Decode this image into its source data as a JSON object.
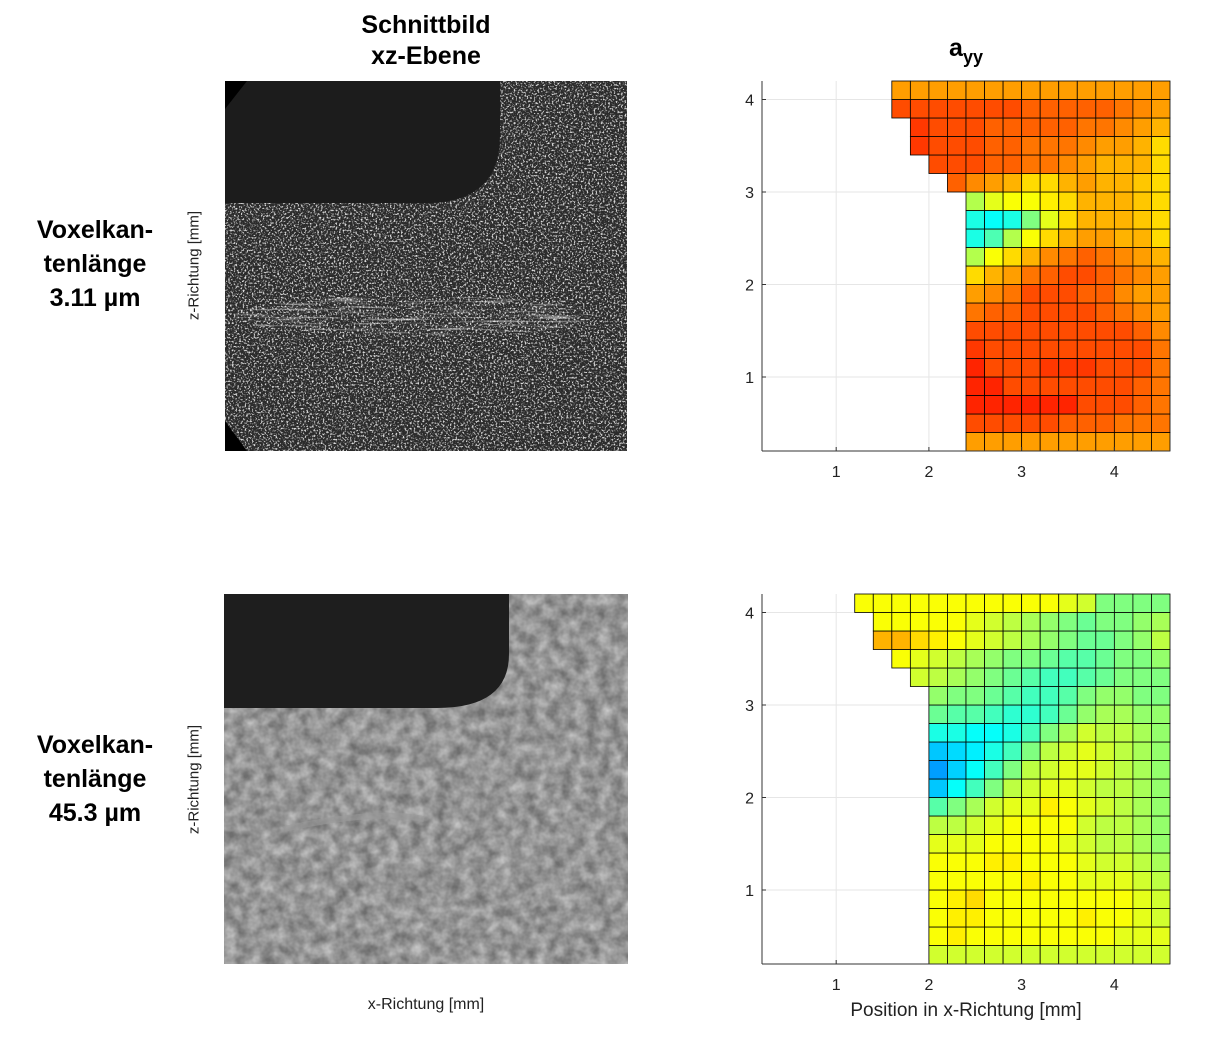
{
  "left_column": {
    "title_line1": "Schnittbild",
    "title_line2": "xz-Ebene",
    "y_label": "z-Richtung [mm]",
    "x_label": "x-Richtung [mm]"
  },
  "rows": [
    {
      "label_line1": "Voxelkan-",
      "label_line2": "tenlänge",
      "label_line3": "3.11 µm",
      "image": "ct-slice-high-resolution"
    },
    {
      "label_line1": "Voxelkan-",
      "label_line2": "tenlänge",
      "label_line3": "45.3 µm",
      "image": "ct-slice-low-resolution"
    }
  ],
  "colors": {
    "cavity": "#1c1c1c",
    "slice_high_res_bg": "#2a2a2a",
    "slice_low_res_bg": "#7a7a7a",
    "gridline": "#e6e6e6",
    "cell_border": "#000000"
  },
  "chart_data": [
    {
      "type": "heatmap",
      "title": "a",
      "title_subscript": "yy",
      "xlabel": "",
      "ylabel": "",
      "xlim": [
        0.2,
        4.6
      ],
      "ylim": [
        0.2,
        4.2
      ],
      "xticks": [
        1,
        2,
        3,
        4
      ],
      "yticks": [
        1,
        2,
        3,
        4
      ],
      "grid": true,
      "cell_size": 0.2,
      "x_start": 0.2,
      "y_start": 0.2,
      "colormap": "jet",
      "color_range": [
        0,
        1
      ],
      "row_extent": [
        11,
        11,
        11,
        11,
        11,
        11,
        11,
        11,
        11,
        11,
        11,
        11,
        11,
        11,
        12,
        13,
        14,
        14,
        15,
        15
      ],
      "values": [
        [
          0.72,
          0.72,
          0.72,
          0.72,
          0.72,
          0.72,
          0.72,
          0.72,
          0.72,
          0.72,
          0.72,
          0.72,
          0.72,
          0.72,
          0.72,
          0.72,
          0.72,
          0.72,
          0.72,
          0.72,
          0.72,
          0.72
        ],
        [
          0.72,
          0.76,
          0.78,
          0.78,
          0.8,
          0.8,
          0.8,
          0.8,
          0.8,
          0.8,
          0.8,
          0.8,
          0.8,
          0.8,
          0.8,
          0.8,
          0.78,
          0.78,
          0.78,
          0.76,
          0.76,
          0.76
        ],
        [
          0.72,
          0.78,
          0.8,
          0.82,
          0.8,
          0.82,
          0.82,
          0.82,
          0.82,
          0.82,
          0.84,
          0.84,
          0.84,
          0.84,
          0.84,
          0.84,
          0.84,
          0.8,
          0.8,
          0.8,
          0.78,
          0.76
        ],
        [
          0.7,
          0.74,
          0.76,
          0.76,
          0.78,
          0.8,
          0.8,
          0.84,
          0.84,
          0.84,
          0.84,
          0.84,
          0.84,
          0.8,
          0.8,
          0.8,
          0.8,
          0.8,
          0.8,
          0.8,
          0.78,
          0.76
        ],
        [
          0.7,
          0.72,
          0.74,
          0.76,
          0.78,
          0.78,
          0.8,
          0.82,
          0.82,
          0.84,
          0.84,
          0.84,
          0.8,
          0.8,
          0.8,
          0.82,
          0.82,
          0.82,
          0.8,
          0.8,
          0.8,
          0.76
        ],
        [
          0.66,
          0.7,
          0.72,
          0.74,
          0.76,
          0.78,
          0.8,
          0.8,
          0.8,
          0.82,
          0.82,
          0.82,
          0.8,
          0.8,
          0.8,
          0.8,
          0.8,
          0.8,
          0.8,
          0.8,
          0.8,
          0.76
        ],
        [
          0.6,
          0.64,
          0.66,
          0.7,
          0.72,
          0.74,
          0.76,
          0.78,
          0.78,
          0.8,
          0.8,
          0.8,
          0.8,
          0.8,
          0.8,
          0.8,
          0.8,
          0.8,
          0.8,
          0.8,
          0.78,
          0.74
        ],
        [
          0.5,
          0.54,
          0.58,
          0.6,
          0.62,
          0.66,
          0.7,
          0.72,
          0.72,
          0.74,
          0.76,
          0.76,
          0.78,
          0.78,
          0.8,
          0.8,
          0.8,
          0.8,
          0.78,
          0.76,
          0.74,
          0.72
        ],
        [
          0.45,
          0.45,
          0.4,
          0.38,
          0.4,
          0.45,
          0.55,
          0.6,
          0.62,
          0.66,
          0.7,
          0.72,
          0.74,
          0.76,
          0.8,
          0.8,
          0.8,
          0.78,
          0.78,
          0.74,
          0.72,
          0.72
        ],
        [
          0.45,
          0.42,
          0.38,
          0.33,
          0.33,
          0.4,
          0.42,
          0.45,
          0.55,
          0.6,
          0.64,
          0.66,
          0.7,
          0.72,
          0.76,
          0.78,
          0.8,
          0.8,
          0.78,
          0.76,
          0.74,
          0.72
        ],
        [
          0.55,
          0.5,
          0.48,
          0.45,
          0.42,
          0.4,
          0.35,
          0.3,
          0.3,
          0.35,
          0.45,
          0.55,
          0.62,
          0.66,
          0.7,
          0.74,
          0.76,
          0.78,
          0.76,
          0.74,
          0.72,
          0.7
        ],
        [
          0.66,
          0.62,
          0.6,
          0.55,
          0.5,
          0.45,
          0.42,
          0.38,
          0.36,
          0.4,
          0.42,
          0.4,
          0.45,
          0.55,
          0.62,
          0.66,
          0.7,
          0.72,
          0.72,
          0.7,
          0.7,
          0.66
        ],
        [
          0.7,
          0.68,
          0.66,
          0.64,
          0.62,
          0.6,
          0.6,
          0.58,
          0.55,
          0.5,
          0.45,
          0.4,
          0.38,
          0.4,
          0.5,
          0.6,
          0.66,
          0.7,
          0.7,
          0.7,
          0.68,
          0.66
        ],
        [
          0.72,
          0.72,
          0.7,
          0.68,
          0.68,
          0.66,
          0.66,
          0.64,
          0.62,
          0.6,
          0.58,
          0.55,
          0.6,
          0.62,
          0.62,
          0.64,
          0.66,
          0.7,
          0.7,
          0.7,
          0.68,
          0.66
        ],
        [
          0.76,
          0.76,
          0.76,
          0.76,
          0.78,
          0.78,
          0.8,
          0.8,
          0.8,
          0.78,
          0.78,
          0.74,
          0.72,
          0.7,
          0.66,
          0.66,
          0.7,
          0.72,
          0.7,
          0.7,
          0.68,
          0.66
        ],
        [
          0.78,
          0.78,
          0.78,
          0.78,
          0.8,
          0.8,
          0.8,
          0.82,
          0.8,
          0.8,
          0.8,
          0.8,
          0.78,
          0.78,
          0.76,
          0.76,
          0.74,
          0.72,
          0.7,
          0.7,
          0.7,
          0.66
        ],
        [
          0.76,
          0.76,
          0.78,
          0.78,
          0.8,
          0.8,
          0.82,
          0.82,
          0.82,
          0.8,
          0.8,
          0.8,
          0.78,
          0.78,
          0.76,
          0.76,
          0.76,
          0.74,
          0.72,
          0.72,
          0.7,
          0.66
        ],
        [
          0.76,
          0.76,
          0.78,
          0.78,
          0.8,
          0.8,
          0.84,
          0.84,
          0.82,
          0.8,
          0.8,
          0.8,
          0.78,
          0.78,
          0.78,
          0.78,
          0.78,
          0.76,
          0.76,
          0.74,
          0.72,
          0.7
        ],
        [
          0.74,
          0.76,
          0.76,
          0.78,
          0.78,
          0.8,
          0.8,
          0.8,
          0.8,
          0.8,
          0.8,
          0.8,
          0.8,
          0.8,
          0.78,
          0.78,
          0.78,
          0.78,
          0.78,
          0.76,
          0.74,
          0.72
        ],
        [
          0.72,
          0.72,
          0.72,
          0.72,
          0.72,
          0.72,
          0.72,
          0.72,
          0.72,
          0.72,
          0.72,
          0.72,
          0.72,
          0.72,
          0.72,
          0.72,
          0.72,
          0.72,
          0.72,
          0.72,
          0.72,
          0.72
        ]
      ]
    },
    {
      "type": "heatmap",
      "title": "",
      "xlabel": "Position in x-Richtung [mm]",
      "ylabel": "",
      "xlim": [
        0.2,
        4.6
      ],
      "ylim": [
        0.2,
        4.2
      ],
      "xticks": [
        1,
        2,
        3,
        4
      ],
      "yticks": [
        1,
        2,
        3,
        4
      ],
      "grid": true,
      "cell_size": 0.2,
      "x_start": 0.2,
      "y_start": 0.2,
      "colormap": "jet",
      "color_range": [
        0,
        1
      ],
      "row_extent": [
        13,
        13,
        13,
        13,
        13,
        13,
        13,
        13,
        13,
        13,
        13,
        13,
        13,
        13,
        13,
        14,
        15,
        16,
        16,
        17
      ],
      "values": [
        [
          0.58,
          0.58,
          0.58,
          0.58,
          0.58,
          0.58,
          0.58,
          0.58,
          0.58,
          0.58,
          0.58,
          0.58,
          0.58,
          0.58,
          0.58,
          0.58,
          0.58,
          0.58,
          0.58,
          0.58,
          0.58,
          0.58
        ],
        [
          0.58,
          0.6,
          0.6,
          0.6,
          0.62,
          0.62,
          0.62,
          0.62,
          0.62,
          0.62,
          0.64,
          0.62,
          0.62,
          0.62,
          0.62,
          0.62,
          0.62,
          0.62,
          0.62,
          0.6,
          0.6,
          0.6
        ],
        [
          0.58,
          0.6,
          0.62,
          0.62,
          0.62,
          0.62,
          0.62,
          0.62,
          0.62,
          0.62,
          0.64,
          0.64,
          0.62,
          0.62,
          0.62,
          0.62,
          0.62,
          0.64,
          0.62,
          0.62,
          0.6,
          0.58
        ],
        [
          0.56,
          0.6,
          0.6,
          0.6,
          0.62,
          0.62,
          0.62,
          0.6,
          0.62,
          0.62,
          0.64,
          0.66,
          0.62,
          0.62,
          0.62,
          0.62,
          0.62,
          0.62,
          0.62,
          0.62,
          0.6,
          0.58
        ],
        [
          0.54,
          0.56,
          0.58,
          0.58,
          0.6,
          0.6,
          0.62,
          0.62,
          0.62,
          0.62,
          0.62,
          0.62,
          0.62,
          0.62,
          0.64,
          0.62,
          0.62,
          0.6,
          0.6,
          0.6,
          0.58,
          0.56
        ],
        [
          0.44,
          0.46,
          0.5,
          0.52,
          0.56,
          0.58,
          0.6,
          0.6,
          0.6,
          0.62,
          0.62,
          0.62,
          0.64,
          0.64,
          0.62,
          0.62,
          0.62,
          0.6,
          0.58,
          0.58,
          0.56,
          0.54
        ],
        [
          0.4,
          0.42,
          0.44,
          0.48,
          0.52,
          0.54,
          0.56,
          0.58,
          0.58,
          0.6,
          0.6,
          0.6,
          0.62,
          0.62,
          0.62,
          0.62,
          0.6,
          0.58,
          0.56,
          0.56,
          0.54,
          0.52
        ],
        [
          0.34,
          0.34,
          0.36,
          0.4,
          0.44,
          0.48,
          0.5,
          0.52,
          0.54,
          0.56,
          0.56,
          0.58,
          0.6,
          0.62,
          0.62,
          0.62,
          0.62,
          0.58,
          0.56,
          0.56,
          0.54,
          0.52
        ],
        [
          0.36,
          0.33,
          0.3,
          0.3,
          0.32,
          0.36,
          0.4,
          0.42,
          0.44,
          0.46,
          0.5,
          0.54,
          0.58,
          0.6,
          0.6,
          0.64,
          0.62,
          0.6,
          0.58,
          0.56,
          0.54,
          0.52
        ],
        [
          0.38,
          0.36,
          0.33,
          0.32,
          0.3,
          0.3,
          0.28,
          0.28,
          0.3,
          0.32,
          0.38,
          0.44,
          0.5,
          0.56,
          0.58,
          0.6,
          0.6,
          0.58,
          0.56,
          0.56,
          0.54,
          0.52
        ],
        [
          0.42,
          0.4,
          0.38,
          0.36,
          0.34,
          0.33,
          0.3,
          0.28,
          0.26,
          0.28,
          0.33,
          0.38,
          0.44,
          0.5,
          0.56,
          0.58,
          0.6,
          0.6,
          0.58,
          0.56,
          0.54,
          0.52
        ],
        [
          0.44,
          0.42,
          0.42,
          0.4,
          0.38,
          0.38,
          0.36,
          0.34,
          0.33,
          0.32,
          0.34,
          0.36,
          0.4,
          0.44,
          0.5,
          0.56,
          0.58,
          0.6,
          0.58,
          0.56,
          0.54,
          0.52
        ],
        [
          0.48,
          0.48,
          0.46,
          0.46,
          0.44,
          0.44,
          0.44,
          0.44,
          0.42,
          0.4,
          0.4,
          0.38,
          0.38,
          0.4,
          0.44,
          0.5,
          0.54,
          0.58,
          0.56,
          0.56,
          0.54,
          0.52
        ],
        [
          0.54,
          0.54,
          0.52,
          0.52,
          0.52,
          0.52,
          0.52,
          0.5,
          0.48,
          0.48,
          0.46,
          0.46,
          0.44,
          0.42,
          0.42,
          0.44,
          0.48,
          0.52,
          0.54,
          0.54,
          0.52,
          0.52
        ],
        [
          0.56,
          0.56,
          0.56,
          0.56,
          0.56,
          0.56,
          0.54,
          0.54,
          0.54,
          0.52,
          0.5,
          0.5,
          0.48,
          0.46,
          0.44,
          0.44,
          0.46,
          0.5,
          0.52,
          0.52,
          0.5,
          0.5
        ],
        [
          0.6,
          0.6,
          0.6,
          0.6,
          0.6,
          0.62,
          0.62,
          0.6,
          0.58,
          0.56,
          0.54,
          0.52,
          0.5,
          0.48,
          0.46,
          0.44,
          0.44,
          0.46,
          0.48,
          0.5,
          0.5,
          0.5
        ],
        [
          0.62,
          0.62,
          0.62,
          0.62,
          0.62,
          0.62,
          0.62,
          0.62,
          0.6,
          0.58,
          0.56,
          0.54,
          0.52,
          0.5,
          0.5,
          0.48,
          0.46,
          0.46,
          0.48,
          0.5,
          0.5,
          0.52
        ],
        [
          0.64,
          0.64,
          0.64,
          0.64,
          0.66,
          0.66,
          0.7,
          0.7,
          0.66,
          0.64,
          0.62,
          0.6,
          0.58,
          0.56,
          0.54,
          0.52,
          0.5,
          0.48,
          0.48,
          0.5,
          0.52,
          0.56
        ],
        [
          0.62,
          0.62,
          0.62,
          0.62,
          0.62,
          0.62,
          0.62,
          0.62,
          0.62,
          0.62,
          0.62,
          0.6,
          0.58,
          0.56,
          0.54,
          0.52,
          0.5,
          0.48,
          0.5,
          0.5,
          0.52,
          0.54
        ],
        [
          0.62,
          0.62,
          0.62,
          0.62,
          0.62,
          0.62,
          0.62,
          0.62,
          0.62,
          0.62,
          0.62,
          0.62,
          0.62,
          0.62,
          0.62,
          0.62,
          0.6,
          0.58,
          0.5,
          0.5,
          0.5,
          0.5
        ]
      ]
    }
  ]
}
